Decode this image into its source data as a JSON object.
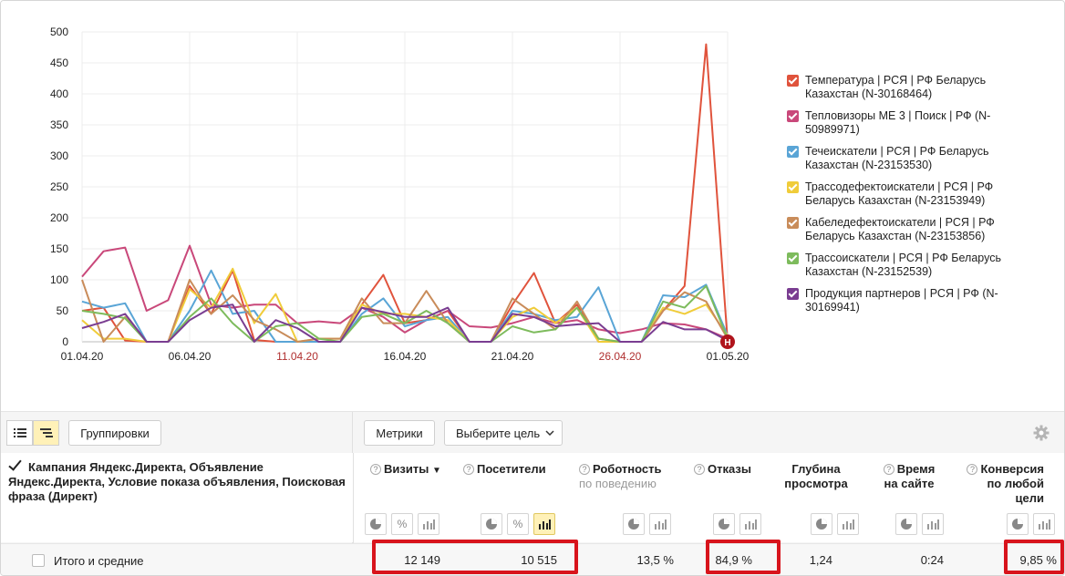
{
  "chart_data": {
    "type": "line",
    "x": [
      "01.04.20",
      "02.04.20",
      "03.04.20",
      "04.04.20",
      "05.04.20",
      "06.04.20",
      "07.04.20",
      "08.04.20",
      "09.04.20",
      "10.04.20",
      "11.04.20",
      "12.04.20",
      "13.04.20",
      "14.04.20",
      "15.04.20",
      "16.04.20",
      "17.04.20",
      "18.04.20",
      "19.04.20",
      "20.04.20",
      "21.04.20",
      "22.04.20",
      "23.04.20",
      "24.04.20",
      "25.04.20",
      "26.04.20",
      "27.04.20",
      "28.04.20",
      "29.04.20",
      "30.04.20",
      "01.05.20"
    ],
    "x_tick_labels": [
      "01.04.20",
      "06.04.20",
      "11.04.20",
      "16.04.20",
      "21.04.20",
      "26.04.20",
      "01.05.20"
    ],
    "weekend_ticks": [
      "11.04.20",
      "26.04.20"
    ],
    "y_ticks": [
      0,
      50,
      100,
      150,
      200,
      250,
      300,
      350,
      400,
      450,
      500
    ],
    "ylim": [
      0,
      500
    ],
    "grid": true,
    "legend_position": "right",
    "annotation_marker": "Н",
    "series": [
      {
        "name": "Температура | РСЯ | РФ Беларусь Казахстан (N-30168464)",
        "color": "#e0533c",
        "values": [
          50,
          55,
          2,
          0,
          0,
          90,
          45,
          115,
          3,
          0,
          0,
          0,
          0,
          60,
          108,
          30,
          35,
          50,
          0,
          0,
          60,
          111,
          30,
          60,
          0,
          0,
          0,
          50,
          90,
          480,
          0
        ]
      },
      {
        "name": "Тепловизоры ME 3 | Поиск | РФ (N-50989971)",
        "color": "#c9487a",
        "values": [
          105,
          146,
          152,
          50,
          67,
          155,
          60,
          55,
          60,
          60,
          30,
          33,
          30,
          55,
          40,
          15,
          35,
          50,
          25,
          23,
          30,
          40,
          30,
          35,
          20,
          14,
          20,
          30,
          28,
          20,
          5
        ]
      },
      {
        "name": "Течеискатели | РСЯ | РФ Беларусь Казахстан (N-23153530)",
        "color": "#5aa5d6",
        "values": [
          65,
          55,
          62,
          0,
          0,
          50,
          115,
          45,
          50,
          0,
          0,
          0,
          0,
          45,
          70,
          25,
          35,
          40,
          0,
          0,
          50,
          45,
          35,
          40,
          88,
          0,
          0,
          75,
          72,
          92,
          10
        ]
      },
      {
        "name": "Трассодефектоискатели | РСЯ | РФ Беларусь Казахстан (N-23153949)",
        "color": "#f0cc3a",
        "values": [
          35,
          5,
          5,
          0,
          0,
          85,
          55,
          118,
          30,
          77,
          0,
          5,
          5,
          60,
          45,
          45,
          40,
          35,
          0,
          0,
          40,
          55,
          30,
          55,
          0,
          0,
          0,
          55,
          45,
          60,
          10
        ]
      },
      {
        "name": "Кабеледефектоискатели | РСЯ | РФ Беларусь Казахстан (N-23153856)",
        "color": "#c98c5a",
        "values": [
          100,
          0,
          40,
          0,
          0,
          100,
          45,
          75,
          35,
          20,
          0,
          5,
          5,
          70,
          30,
          30,
          82,
          30,
          0,
          0,
          70,
          45,
          20,
          65,
          5,
          0,
          0,
          50,
          80,
          65,
          5
        ]
      },
      {
        "name": "Трассоискатели | РСЯ | РФ Беларусь Казахстан (N-23152539)",
        "color": "#7dbb5c",
        "values": [
          50,
          45,
          38,
          0,
          0,
          40,
          70,
          30,
          0,
          25,
          30,
          5,
          0,
          40,
          45,
          30,
          50,
          30,
          0,
          0,
          25,
          15,
          20,
          55,
          5,
          0,
          0,
          65,
          55,
          90,
          5
        ]
      },
      {
        "name": "Продукция партнеров | РСЯ | РФ (N-30169941)",
        "color": "#7a3d91",
        "values": [
          22,
          32,
          45,
          0,
          0,
          35,
          55,
          60,
          0,
          35,
          22,
          0,
          0,
          55,
          48,
          40,
          40,
          55,
          0,
          0,
          45,
          40,
          25,
          28,
          30,
          0,
          0,
          32,
          20,
          20,
          2
        ]
      }
    ]
  },
  "toolbar": {
    "groupings_label": "Группировки",
    "metrics_label": "Метрики",
    "goal_select_label": "Выберите цель"
  },
  "table": {
    "dimension_header": "Кампания Яндекс.Директа, Объявление Яндекс.Директа, Условие показа объявления, Поисковая фраза (Директ)",
    "columns": {
      "visits": "Визиты",
      "visitors": "Посетители",
      "robotness": "Роботность",
      "robotness_sub": "по поведению",
      "bounces": "Отказы",
      "depth_1": "Глубина",
      "depth_2": "просмотра",
      "time_1": "Время",
      "time_2": "на сайте",
      "conv_1": "Конверсия",
      "conv_2": "по любой",
      "conv_3": "цели"
    },
    "sort_indicator": "▼",
    "totals": {
      "label": "Итого и средние",
      "visits": "12 149",
      "visitors": "10 515",
      "robotness": "13,5 %",
      "bounces": "84,9 %",
      "depth": "1,24",
      "time": "0:24",
      "conversion": "9,85 %"
    }
  },
  "icons": {
    "view_list": "list-view-icon",
    "view_tree": "tree-view-icon",
    "settings": "gear-icon",
    "pie": "pie-chart-icon",
    "percent": "percent-icon",
    "bars": "bar-chart-icon",
    "help": "question-icon"
  },
  "highlight_color": "#d8141c"
}
